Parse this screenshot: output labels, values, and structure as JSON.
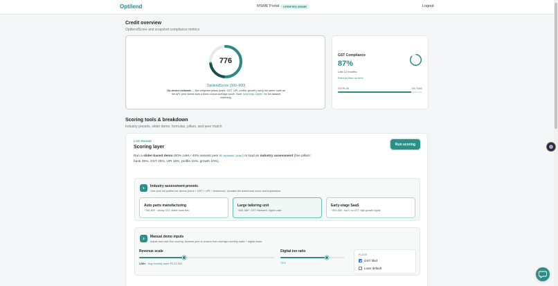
{
  "header": {
    "brand": "Optilend",
    "portal": "MSME Portal",
    "verified_badge": "VERIFIED MSME",
    "logout": "Logout"
  },
  "credit_overview": {
    "title": "Credit overview",
    "subtitle": "OptilendScore and snapshot compliance metrics",
    "score": {
      "value": "776",
      "fill_fraction": 0.73,
      "label": "OptilendScore (300–900)",
      "desc_bold": "On-device estimate",
      "desc_text": " — five weighted pillars (bank, GST, UPI, profile, growth) using the same math as the API; peer blend uses a fixed corpus average score. Start ",
      "desc_code": "scoring-layer",
      "desc_tail": " for full dataset matching."
    },
    "gst": {
      "title": "GST Compliance",
      "percent": "87%",
      "fill_fraction": 0.87,
      "period": "Last 12 months",
      "link": "Returns filed on time",
      "bar_left": "GSTR-3B",
      "bar_right": "ON TIME"
    }
  },
  "scoring_tools": {
    "title": "Scoring tools & breakdown",
    "subtitle": "Industry presets, slider demo, formulas, pillars, and peer match",
    "engine": {
      "tag": "LIVE ENGINE",
      "title": "Scoring layer",
      "run_button": "Run scoring",
      "desc_1": "Run a ",
      "desc_bold_1": "slider-based demo",
      "desc_2": " (60% rules / 40% nearest peer in ",
      "desc_code": "dataset.json",
      "desc_3": ") or load an ",
      "desc_bold_2": "industry assessment",
      "desc_4": " (five pillars: bank 35%, GST 25%, UPI 15%, profile 15%, growth 10%)."
    },
    "presets_panel": {
      "step": "1",
      "title": "Industry assessment presets",
      "subtitle": "One-click full profiles for demos (bank + GST + UPI + behaviour). Updates the dashboard score and explanation.",
      "presets": [
        {
          "name": "Auto parts manufacturing",
          "desc": "~780–820 · strong GST, stable bank flow",
          "selected": false
        },
        {
          "name": "Large tailoring unit",
          "desc": "~600–680 · GST mismatch, higher cash",
          "selected": true
        },
        {
          "name": "Early-stage SaaS",
          "desc": "~550–650 · burn, no GST, high growth signal",
          "selected": false
        }
      ]
    },
    "manual_panel": {
      "step": "2",
      "title": "Manual demo inputs",
      "subtitle": "Adjust and click Run scoring. Nearest peer is chosen from average monthly sales + digital share.",
      "revenue": {
        "label": "Revenue scale",
        "fraction": 0.33,
        "value_strong": "1.00×",
        "value_text": "Avg monthly sales ₹2,03,333"
      },
      "ratio": {
        "label": "Digital txn ratio",
        "fraction": 0.72,
        "value": "72%"
      },
      "flags": {
        "title": "FLAGS",
        "items": [
          {
            "label": "GST filed",
            "checked": true
          },
          {
            "label": "Loan default",
            "checked": false
          }
        ]
      }
    }
  },
  "colors": {
    "accent": "#2a8a86",
    "accent_light": "#a8ddd5",
    "checkbox": "#2a6fd6"
  }
}
